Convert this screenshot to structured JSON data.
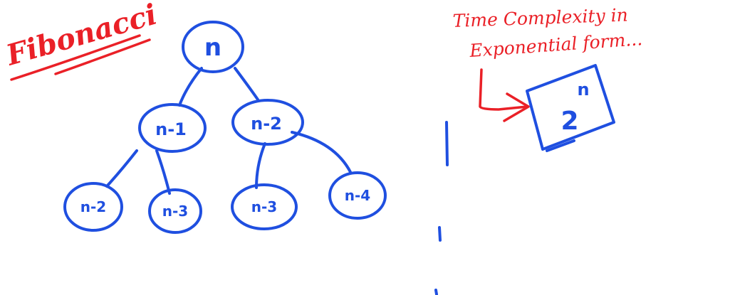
{
  "title": "Fibonacci",
  "annotation": {
    "line1": "Time Complexity in",
    "line2": "Exponential form..."
  },
  "complexity": {
    "base": "2",
    "exponent": "n"
  },
  "tree": {
    "root": {
      "label": "n"
    },
    "level1": [
      {
        "label": "n-1"
      },
      {
        "label": "n-2"
      }
    ],
    "level2": [
      {
        "label": "n-2"
      },
      {
        "label": "n-3"
      },
      {
        "label": "n-3"
      },
      {
        "label": "n-4"
      }
    ]
  },
  "colors": {
    "ink_blue": "#1f4fe0",
    "ink_red": "#ea2027",
    "background": "#ffffff"
  }
}
